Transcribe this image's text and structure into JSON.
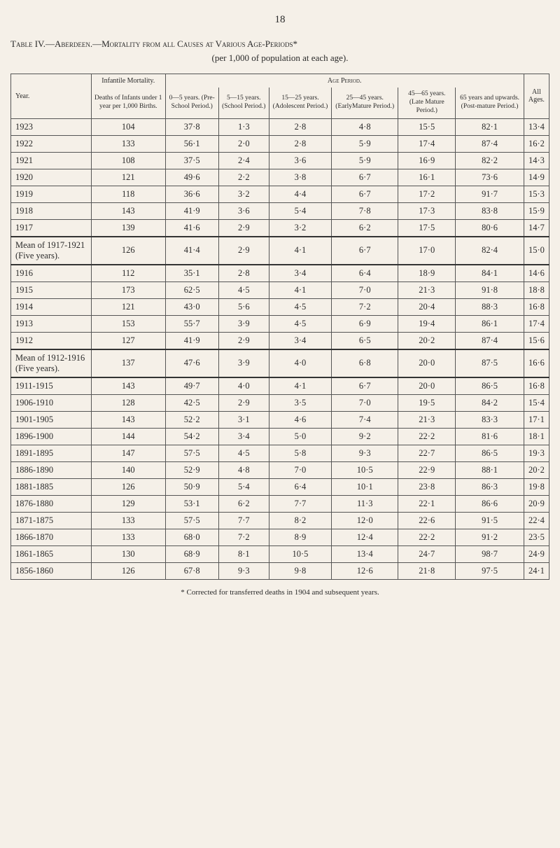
{
  "page_number": "18",
  "title": "Table IV.—Aberdeen.—Mortality from all Causes at Various Age-Periods*",
  "subtitle": "(per 1,000 of population at each age).",
  "headers": {
    "year": "Year.",
    "infantile_top": "Infantile Mortality.",
    "infantile_bot": "Deaths of Infants under 1 year per 1,000 Births.",
    "age_period": "Age Period.",
    "c1": "0—5 years. (Pre-School Period.)",
    "c2": "5—15 years. (School Period.)",
    "c3": "15—25 years. (Adolescent Period.)",
    "c4": "25—45 years. (EarlyMature Period.)",
    "c5": "45—65 years. (Late Mature Period.)",
    "c6": "65 years and upwards. (Post-mature Period.)",
    "all_ages": "All Ages."
  },
  "rows": [
    {
      "y": "1923",
      "inf": "104",
      "v": [
        "37·8",
        "1·3",
        "2·8",
        "4·8",
        "15·5",
        "82·1",
        "13·4"
      ]
    },
    {
      "y": "1922",
      "inf": "133",
      "v": [
        "56·1",
        "2·0",
        "2·8",
        "5·9",
        "17·4",
        "87·4",
        "16·2"
      ]
    },
    {
      "y": "1921",
      "inf": "108",
      "v": [
        "37·5",
        "2·4",
        "3·6",
        "5·9",
        "16·9",
        "82·2",
        "14·3"
      ]
    },
    {
      "y": "1920",
      "inf": "121",
      "v": [
        "49·6",
        "2·2",
        "3·8",
        "6·7",
        "16·1",
        "73·6",
        "14·9"
      ]
    },
    {
      "y": "1919",
      "inf": "118",
      "v": [
        "36·6",
        "3·2",
        "4·4",
        "6·7",
        "17·2",
        "91·7",
        "15·3"
      ]
    },
    {
      "y": "1918",
      "inf": "143",
      "v": [
        "41·9",
        "3·6",
        "5·4",
        "7·8",
        "17·3",
        "83·8",
        "15·9"
      ]
    },
    {
      "y": "1917",
      "inf": "139",
      "v": [
        "41·6",
        "2·9",
        "3·2",
        "6·2",
        "17·5",
        "80·6",
        "14·7"
      ]
    }
  ],
  "mean1": {
    "y": "Mean of 1917-1921 (Five years).",
    "inf": "126",
    "v": [
      "41·4",
      "2·9",
      "4·1",
      "6·7",
      "17·0",
      "82·4",
      "15·0"
    ]
  },
  "rows2": [
    {
      "y": "1916",
      "inf": "112",
      "v": [
        "35·1",
        "2·8",
        "3·4",
        "6·4",
        "18·9",
        "84·1",
        "14·6"
      ]
    },
    {
      "y": "1915",
      "inf": "173",
      "v": [
        "62·5",
        "4·5",
        "4·1",
        "7·0",
        "21·3",
        "91·8",
        "18·8"
      ]
    },
    {
      "y": "1914",
      "inf": "121",
      "v": [
        "43·0",
        "5·6",
        "4·5",
        "7·2",
        "20·4",
        "88·3",
        "16·8"
      ]
    },
    {
      "y": "1913",
      "inf": "153",
      "v": [
        "55·7",
        "3·9",
        "4·5",
        "6·9",
        "19·4",
        "86·1",
        "17·4"
      ]
    },
    {
      "y": "1912",
      "inf": "127",
      "v": [
        "41·9",
        "2·9",
        "3·4",
        "6·5",
        "20·2",
        "87·4",
        "15·6"
      ]
    }
  ],
  "mean2": {
    "y": "Mean of 1912-1916 (Five years).",
    "inf": "137",
    "v": [
      "47·6",
      "3·9",
      "4·0",
      "6·8",
      "20·0",
      "87·5",
      "16·6"
    ]
  },
  "rows3": [
    {
      "y": "1911-1915",
      "inf": "143",
      "v": [
        "49·7",
        "4·0",
        "4·1",
        "6·7",
        "20·0",
        "86·5",
        "16·8"
      ]
    },
    {
      "y": "1906-1910",
      "inf": "128",
      "v": [
        "42·5",
        "2·9",
        "3·5",
        "7·0",
        "19·5",
        "84·2",
        "15·4"
      ]
    },
    {
      "y": "1901-1905",
      "inf": "143",
      "v": [
        "52·2",
        "3·1",
        "4·6",
        "7·4",
        "21·3",
        "83·3",
        "17·1"
      ]
    },
    {
      "y": "1896-1900",
      "inf": "144",
      "v": [
        "54·2",
        "3·4",
        "5·0",
        "9·2",
        "22·2",
        "81·6",
        "18·1"
      ]
    },
    {
      "y": "1891-1895",
      "inf": "147",
      "v": [
        "57·5",
        "4·5",
        "5·8",
        "9·3",
        "22·7",
        "86·5",
        "19·3"
      ]
    },
    {
      "y": "1886-1890",
      "inf": "140",
      "v": [
        "52·9",
        "4·8",
        "7·0",
        "10·5",
        "22·9",
        "88·1",
        "20·2"
      ]
    },
    {
      "y": "1881-1885",
      "inf": "126",
      "v": [
        "50·9",
        "5·4",
        "6·4",
        "10·1",
        "23·8",
        "86·3",
        "19·8"
      ]
    },
    {
      "y": "1876-1880",
      "inf": "129",
      "v": [
        "53·1",
        "6·2",
        "7·7",
        "11·3",
        "22·1",
        "86·6",
        "20·9"
      ]
    },
    {
      "y": "1871-1875",
      "inf": "133",
      "v": [
        "57·5",
        "7·7",
        "8·2",
        "12·0",
        "22·6",
        "91·5",
        "22·4"
      ]
    },
    {
      "y": "1866-1870",
      "inf": "133",
      "v": [
        "68·0",
        "7·2",
        "8·9",
        "12·4",
        "22·2",
        "91·2",
        "23·5"
      ]
    },
    {
      "y": "1861-1865",
      "inf": "130",
      "v": [
        "68·9",
        "8·1",
        "10·5",
        "13·4",
        "24·7",
        "98·7",
        "24·9"
      ]
    },
    {
      "y": "1856-1860",
      "inf": "126",
      "v": [
        "67·8",
        "9·3",
        "9·8",
        "12·6",
        "21·8",
        "97·5",
        "24·1"
      ]
    }
  ],
  "footnote": "* Corrected for transferred deaths in 1904 and subsequent years."
}
